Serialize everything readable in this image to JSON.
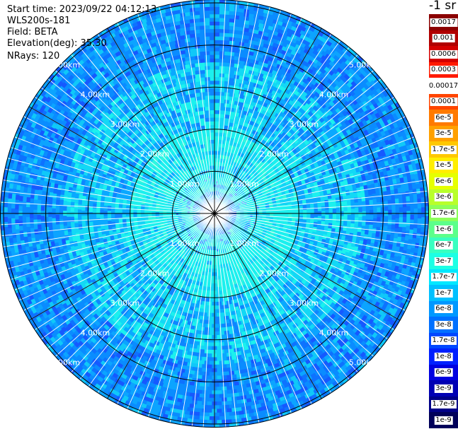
{
  "header": {
    "start_time": "Start time: 2023/09/22 04:12:13",
    "instrument": "WLS200s-181",
    "field": "Field: BETA",
    "elevation": "Elevation(deg): 35.30",
    "nrays": "NRays: 120"
  },
  "colorbar": {
    "unit": "-1 sr",
    "labels": [
      "0.0017",
      "0.001",
      "0.0006",
      "0.0003",
      "0.00017",
      "0.0001",
      "6e-5",
      "3e-5",
      "1.7e-5",
      "1e-5",
      "6e-6",
      "3e-6",
      "1.7e-6",
      "1e-6",
      "6e-7",
      "3e-7",
      "1.7e-7",
      "1e-7",
      "6e-8",
      "3e-8",
      "1.7e-8",
      "1e-8",
      "6e-9",
      "3e-9",
      "1.7e-9",
      "1e-9"
    ],
    "colors": [
      "#8b0000",
      "#b00000",
      "#d40000",
      "#ff1a00",
      "#ffffff",
      "#ff4500",
      "#ff7a00",
      "#ffa000",
      "#ffc800",
      "#ffee00",
      "#e6ff00",
      "#b8ff2a",
      "#8cff5a",
      "#5cff8a",
      "#38ffc0",
      "#1cffe4",
      "#00e8ff",
      "#00c0ff",
      "#0098ff",
      "#0070ff",
      "#0048ff",
      "#0020ff",
      "#0000e0",
      "#0000b4",
      "#000088",
      "#00005a"
    ]
  },
  "chart_data": {
    "type": "heatmap",
    "projection": "polar PPI",
    "field": "BETA",
    "range_rings_km": [
      1,
      2,
      3,
      4,
      5
    ],
    "range_ring_labels": [
      "1.00km",
      "2.00km",
      "3.00km",
      "4.00km",
      "5.00km"
    ],
    "max_range_km": 5.0,
    "nrays": 120,
    "dominant_values": [
      "1e-7",
      "6e-8",
      "3e-8",
      "1.7e-8"
    ],
    "grid": true
  }
}
